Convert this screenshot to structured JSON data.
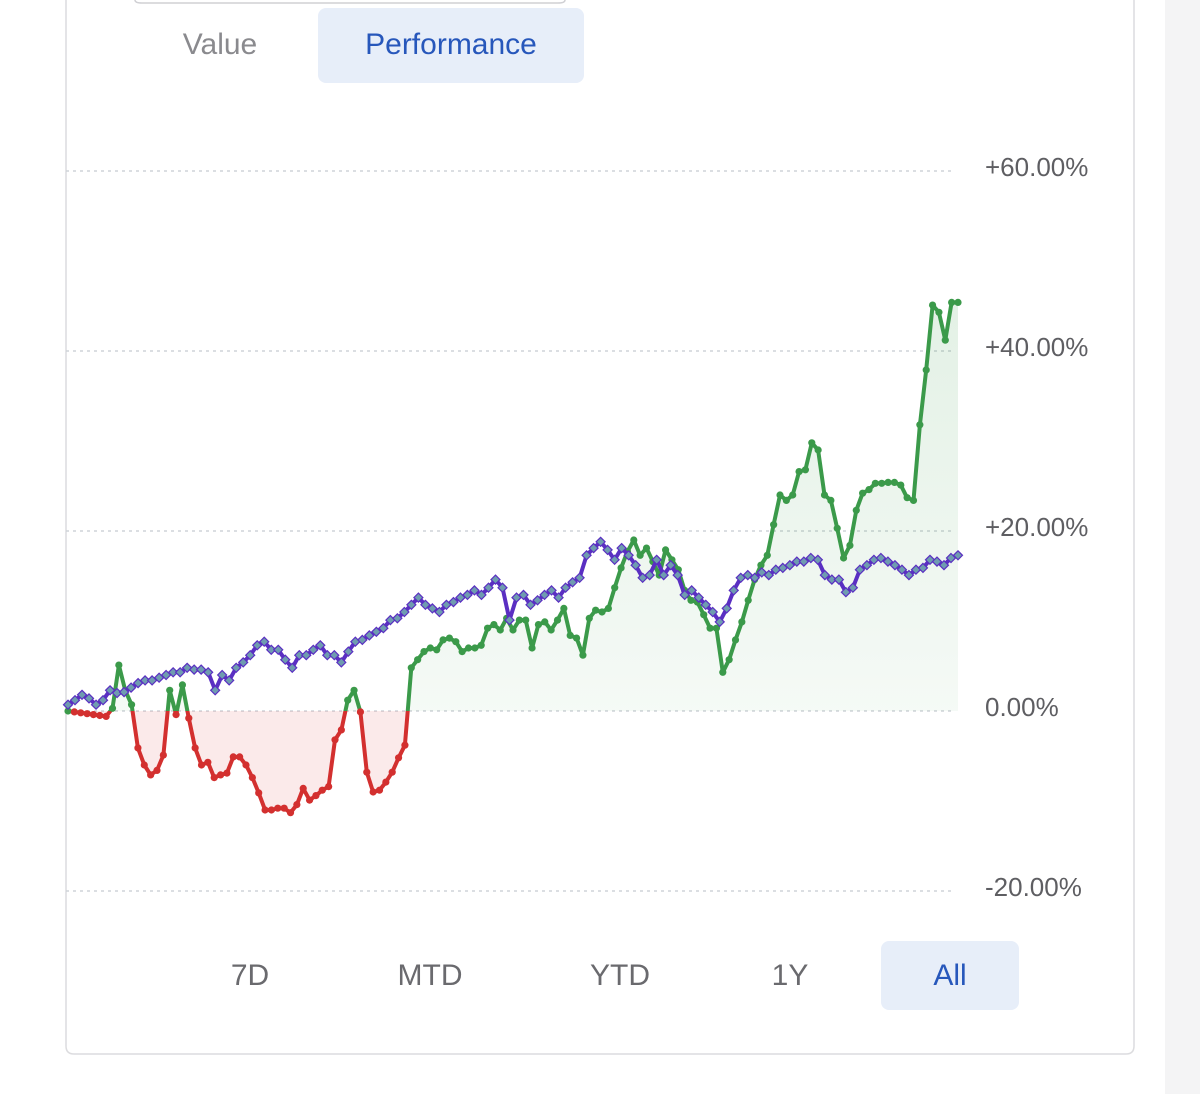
{
  "tabs": {
    "items": [
      "Value",
      "Performance"
    ],
    "selected": 1
  },
  "chart_data": {
    "type": "line",
    "ylim": [
      -20,
      60
    ],
    "yticks": [
      {
        "value": -20,
        "label": "-20.00%"
      },
      {
        "value": 0,
        "label": "0.00%"
      },
      {
        "value": 20,
        "label": "+20.00%"
      },
      {
        "value": 40,
        "label": "+40.00%"
      },
      {
        "value": 60,
        "label": "+60.00%"
      }
    ],
    "grid": true,
    "series": [
      {
        "color": "#3b9a4a",
        "negative_color": "#d3302f",
        "values": [
          0,
          -0.1,
          -0.2,
          -0.3,
          -0.4,
          -0.5,
          -0.6,
          0.3,
          5.1,
          2.3,
          0.7,
          -4.1,
          -6,
          -7.1,
          -6.6,
          -4.9,
          2.3,
          -0.4,
          2.9,
          -0.8,
          -4.1,
          -6,
          -5.7,
          -7.4,
          -7.1,
          -6.9,
          -5.1,
          -5.1,
          -6,
          -7.4,
          -9.1,
          -11,
          -11,
          -10.8,
          -10.8,
          -11.3,
          -10.4,
          -8.6,
          -9.9,
          -9.4,
          -8.8,
          -8.4,
          -3.2,
          -2.1,
          1.2,
          2.3,
          -0.1,
          -6.8,
          -9,
          -8.8,
          -7.9,
          -6.8,
          -5.2,
          -3.8,
          4.8,
          5.7,
          6.6,
          7,
          6.8,
          7.9,
          8.1,
          7.7,
          6.6,
          7,
          7,
          7.3,
          9.2,
          9.6,
          9,
          10.3,
          9,
          10.1,
          10.1,
          7,
          9.6,
          9.9,
          9,
          10.1,
          11.4,
          8.4,
          8.1,
          6.2,
          10.3,
          11.2,
          11,
          11.4,
          13.7,
          15.9,
          17.7,
          19,
          17.3,
          18.1,
          16.6,
          15.1,
          17.9,
          16.8,
          15.7,
          13.4,
          12.3,
          12.1,
          10.7,
          9.2,
          9.2,
          4.3,
          5.7,
          7.9,
          9.9,
          12.3,
          14.6,
          16.2,
          17.3,
          20.7,
          24,
          23.4,
          24,
          26.6,
          26.8,
          29.8,
          29,
          24,
          23.4,
          20.3,
          17,
          18.4,
          22.3,
          24.2,
          24.6,
          25.3,
          25.3,
          25.4,
          25.4,
          25.1,
          23.7,
          23.4,
          31.8,
          37.9,
          45.1,
          44.3,
          41.2,
          45.4,
          45.4
        ]
      },
      {
        "color": "#5a2fc2",
        "marker_color": "#6f9cb0",
        "values": [
          0.7,
          1.2,
          1.8,
          1.4,
          0.7,
          1.2,
          2.3,
          2,
          2.1,
          2.6,
          3.1,
          3.4,
          3.4,
          3.7,
          4,
          4.3,
          4.3,
          4.8,
          4.6,
          4.6,
          4.3,
          2.3,
          4,
          3.4,
          4.8,
          5.4,
          6.2,
          7.3,
          7.7,
          6.8,
          6.8,
          5.7,
          4.8,
          6.2,
          6.2,
          6.8,
          7.3,
          6.2,
          6.2,
          5.4,
          6.6,
          7.7,
          7.9,
          8.4,
          8.8,
          9.2,
          10.1,
          10.3,
          11,
          11.8,
          12.6,
          11.8,
          11.4,
          11,
          11.8,
          12.1,
          12.6,
          12.9,
          13.4,
          12.9,
          13.7,
          14.6,
          13.7,
          10.1,
          12.6,
          12.9,
          11.8,
          12.3,
          12.9,
          13.4,
          12.6,
          13.7,
          14.3,
          14.8,
          17.3,
          18.1,
          18.8,
          17.9,
          16.8,
          18.1,
          17.3,
          16.2,
          14.8,
          15.1,
          16.8,
          15.1,
          16.2,
          15.1,
          12.9,
          13.4,
          12.6,
          11.8,
          11,
          9.9,
          11.4,
          13.4,
          14.8,
          15.1,
          14.8,
          15.4,
          15.1,
          15.7,
          15.9,
          16.2,
          16.6,
          16.6,
          17,
          16.8,
          15.1,
          14.6,
          14.6,
          13.2,
          13.7,
          15.7,
          16.2,
          16.8,
          17,
          16.6,
          16.2,
          15.7,
          15.1,
          15.7,
          15.9,
          16.8,
          16.6,
          16.2,
          17,
          17.3
        ]
      }
    ]
  },
  "ranges": {
    "items": [
      "7D",
      "MTD",
      "YTD",
      "1Y",
      "All"
    ],
    "selected": 4
  }
}
